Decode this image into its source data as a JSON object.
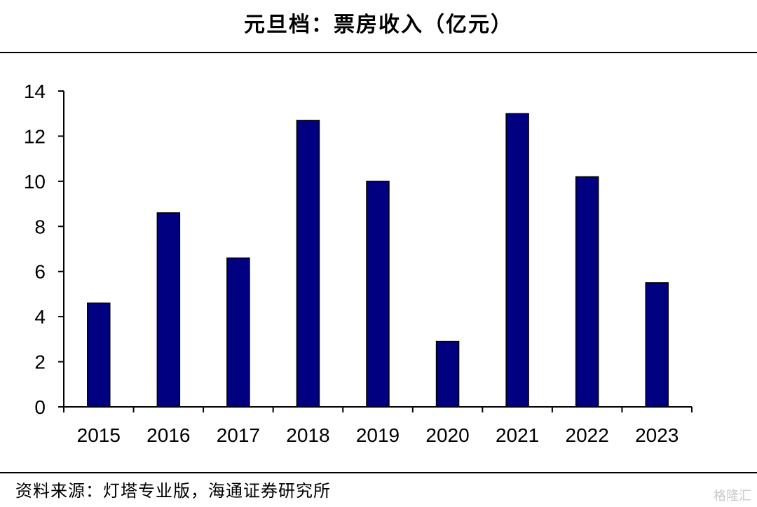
{
  "header": {
    "title": "元旦档：票房收入（亿元）"
  },
  "footer": {
    "source": "资料来源：灯塔专业版，海通证券研究所",
    "watermark": "格隆汇"
  },
  "colors": {
    "bar": "#000080",
    "axis": "#000000"
  },
  "chart_data": {
    "type": "bar",
    "title": "元旦档：票房收入（亿元）",
    "categories": [
      "2015",
      "2016",
      "2017",
      "2018",
      "2019",
      "2020",
      "2021",
      "2022",
      "2023"
    ],
    "values": [
      4.6,
      8.6,
      6.6,
      12.7,
      10.0,
      2.9,
      13.0,
      10.2,
      5.5
    ],
    "yticks": [
      0,
      2,
      4,
      6,
      8,
      10,
      12,
      14
    ],
    "ylim": [
      0,
      14
    ],
    "xlabel": "",
    "ylabel": "",
    "grid": false,
    "legend": "none"
  }
}
